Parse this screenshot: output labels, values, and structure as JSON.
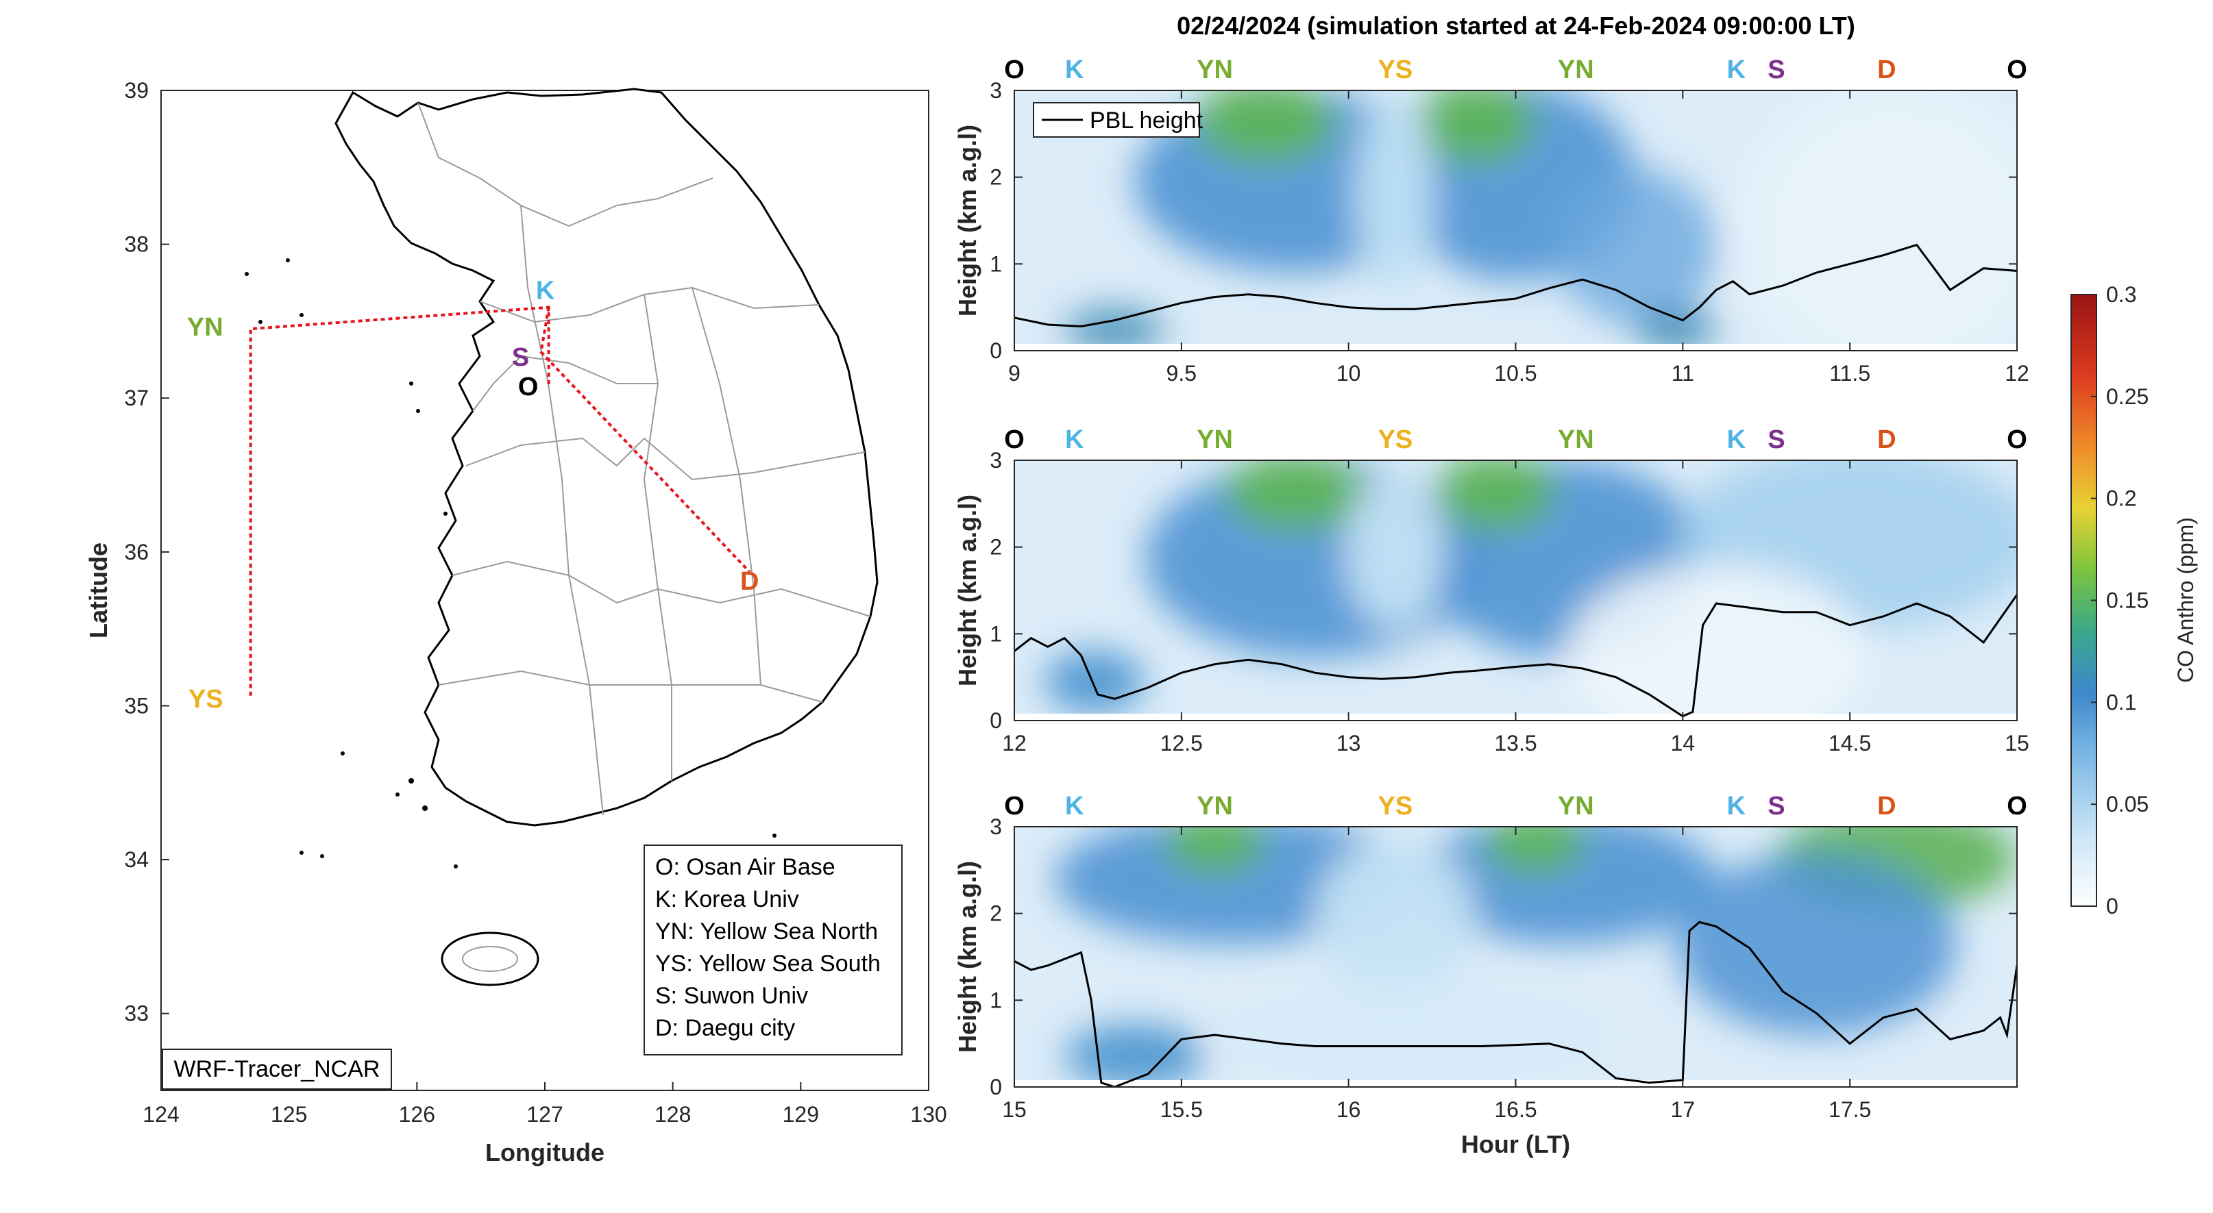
{
  "figure_title": "02/24/2024 (simulation started at 24-Feb-2024 09:00:00 LT)",
  "colors": {
    "O": "#000000",
    "K": "#4db3e6",
    "S": "#7e2f8e",
    "YN": "#77ac30",
    "YS": "#edb120",
    "D": "#d95319",
    "route": "#e8141c"
  },
  "map": {
    "xlabel": "Longitude",
    "ylabel": "Latitude",
    "xticks": [
      "124",
      "125",
      "126",
      "127",
      "128",
      "129",
      "130"
    ],
    "yticks": [
      "39",
      "38",
      "37",
      "36",
      "35",
      "34",
      "33"
    ],
    "xlim": [
      124,
      130
    ],
    "ylim": [
      32.5,
      39
    ],
    "badge": "WRF-Tracer_NCAR",
    "sites": [
      {
        "code": "YN",
        "lon": 124.7,
        "lat": 37.45
      },
      {
        "code": "YS",
        "lon": 124.7,
        "lat": 35.05
      },
      {
        "code": "K",
        "lon": 127.03,
        "lat": 37.59
      },
      {
        "code": "S",
        "lon": 126.97,
        "lat": 37.3
      },
      {
        "code": "O",
        "lon": 127.03,
        "lat": 37.09
      },
      {
        "code": "D",
        "lon": 128.6,
        "lat": 35.87
      }
    ],
    "legend": [
      "O: Osan Air Base",
      "K: Korea Univ",
      "YN: Yellow Sea North",
      "YS: Yellow Sea South",
      "S: Suwon Univ",
      "D: Daegu city"
    ]
  },
  "chart_data": [
    {
      "type": "heatmap",
      "title": "02/24/2024 (simulation started at 24-Feb-2024 09:00:00 LT)",
      "xlabel": "",
      "ylabel": "Height (km a.g.l)",
      "xlim": [
        9,
        12
      ],
      "ylim": [
        0,
        3
      ],
      "xticks": [
        "9",
        "9.5",
        "10",
        "10.5",
        "11",
        "11.5",
        "12"
      ],
      "yticks": [
        "0",
        "1",
        "2",
        "3"
      ],
      "legend": "PBL height",
      "site_labels": [
        "O",
        "K",
        "YN",
        "YS",
        "YN",
        "K",
        "S",
        "D",
        "O"
      ],
      "pbl_height": {
        "x": [
          9.0,
          9.1,
          9.2,
          9.3,
          9.4,
          9.5,
          9.6,
          9.7,
          9.8,
          9.9,
          10.0,
          10.1,
          10.2,
          10.3,
          10.4,
          10.5,
          10.6,
          10.7,
          10.8,
          10.9,
          11.0,
          11.05,
          11.1,
          11.15,
          11.2,
          11.3,
          11.4,
          11.5,
          11.6,
          11.7,
          11.8,
          11.9,
          12.0
        ],
        "y": [
          0.38,
          0.3,
          0.28,
          0.35,
          0.45,
          0.55,
          0.62,
          0.65,
          0.62,
          0.55,
          0.5,
          0.48,
          0.48,
          0.52,
          0.56,
          0.6,
          0.72,
          0.82,
          0.7,
          0.5,
          0.35,
          0.5,
          0.7,
          0.8,
          0.65,
          0.75,
          0.9,
          1.0,
          1.1,
          1.22,
          0.7,
          0.95,
          0.92
        ]
      }
    },
    {
      "type": "heatmap",
      "xlabel": "",
      "ylabel": "Height (km a.g.l)",
      "xlim": [
        12,
        15
      ],
      "ylim": [
        0,
        3
      ],
      "xticks": [
        "12",
        "12.5",
        "13",
        "13.5",
        "14",
        "14.5",
        "15"
      ],
      "yticks": [
        "0",
        "1",
        "2",
        "3"
      ],
      "site_labels": [
        "O",
        "K",
        "YN",
        "YS",
        "YN",
        "K",
        "S",
        "D",
        "O"
      ],
      "pbl_height": {
        "x": [
          12.0,
          12.05,
          12.1,
          12.15,
          12.2,
          12.25,
          12.3,
          12.4,
          12.5,
          12.6,
          12.7,
          12.8,
          12.9,
          13.0,
          13.1,
          13.2,
          13.3,
          13.4,
          13.5,
          13.6,
          13.7,
          13.8,
          13.9,
          14.0,
          14.03,
          14.06,
          14.1,
          14.2,
          14.3,
          14.4,
          14.5,
          14.6,
          14.7,
          14.8,
          14.9,
          15.0
        ],
        "y": [
          0.8,
          0.95,
          0.85,
          0.95,
          0.75,
          0.3,
          0.25,
          0.38,
          0.55,
          0.65,
          0.7,
          0.65,
          0.55,
          0.5,
          0.48,
          0.5,
          0.55,
          0.58,
          0.62,
          0.65,
          0.6,
          0.5,
          0.3,
          0.05,
          0.1,
          1.1,
          1.35,
          1.3,
          1.25,
          1.25,
          1.1,
          1.2,
          1.35,
          1.2,
          0.9,
          1.45
        ]
      }
    },
    {
      "type": "heatmap",
      "xlabel": "Hour (LT)",
      "ylabel": "Height (km a.g.l)",
      "xlim": [
        15,
        18
      ],
      "ylim": [
        0,
        3
      ],
      "xticks": [
        "15",
        "15.5",
        "16",
        "16.5",
        "17",
        "17.5"
      ],
      "yticks": [
        "0",
        "1",
        "2",
        "3"
      ],
      "site_labels": [
        "O",
        "K",
        "YN",
        "YS",
        "YN",
        "K",
        "S",
        "D",
        "O"
      ],
      "pbl_height": {
        "x": [
          15.0,
          15.05,
          15.1,
          15.2,
          15.23,
          15.26,
          15.3,
          15.4,
          15.5,
          15.6,
          15.7,
          15.8,
          15.9,
          16.0,
          16.2,
          16.4,
          16.6,
          16.7,
          16.8,
          16.9,
          17.0,
          17.02,
          17.05,
          17.1,
          17.2,
          17.3,
          17.4,
          17.5,
          17.6,
          17.7,
          17.8,
          17.9,
          17.95,
          17.97,
          18.0
        ],
        "y": [
          1.45,
          1.35,
          1.4,
          1.55,
          1.0,
          0.05,
          0.0,
          0.15,
          0.55,
          0.6,
          0.55,
          0.5,
          0.47,
          0.47,
          0.47,
          0.47,
          0.5,
          0.4,
          0.1,
          0.05,
          0.08,
          1.8,
          1.9,
          1.85,
          1.6,
          1.1,
          0.85,
          0.5,
          0.8,
          0.9,
          0.55,
          0.65,
          0.8,
          0.6,
          1.4
        ]
      }
    }
  ],
  "colorbar": {
    "label": "CO Anthro (ppm)",
    "ticks": [
      "0",
      "0.05",
      "0.1",
      "0.15",
      "0.2",
      "0.25",
      "0.3"
    ],
    "range": [
      0,
      0.3
    ]
  }
}
